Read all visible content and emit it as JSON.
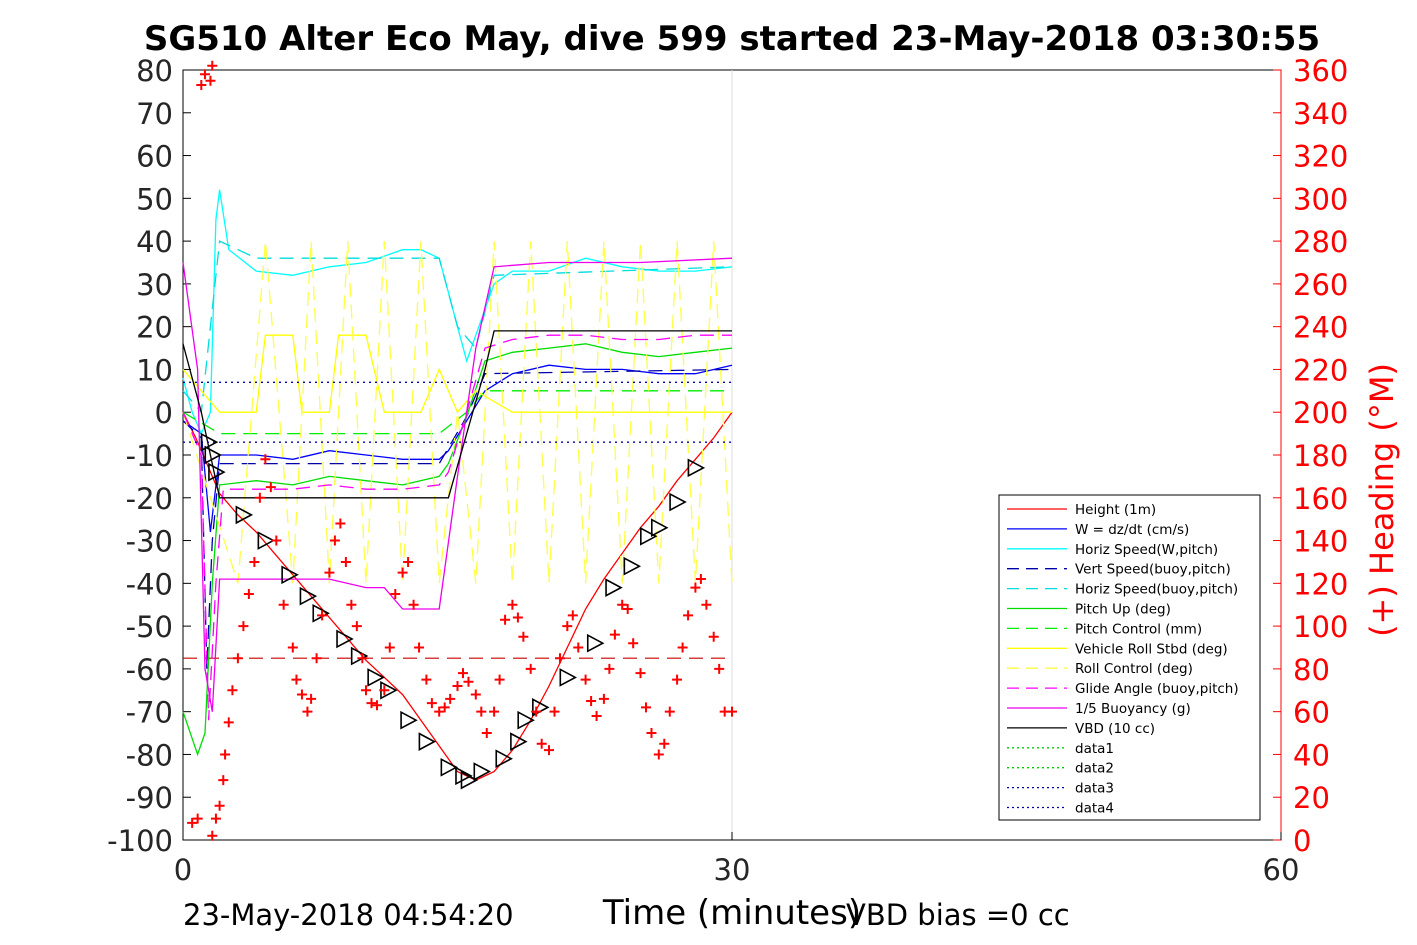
{
  "chart_data": {
    "type": "line",
    "title": "SG510 Alter Eco May, dive 599 started 23-May-2018 03:30:55",
    "xlabel": "Time (minutes)",
    "ylabel_right": "(+) Heading (°M)",
    "xlim": [
      0,
      60
    ],
    "ylim_left": [
      -100,
      80
    ],
    "ylim_right": [
      0,
      360
    ],
    "x_ticks": [
      "0",
      "30",
      "60"
    ],
    "y_ticks_left": [
      "80",
      "70",
      "60",
      "50",
      "40",
      "30",
      "20",
      "10",
      "0",
      "-10",
      "-20",
      "-30",
      "-40",
      "-50",
      "-60",
      "-70",
      "-80",
      "-90",
      "-100"
    ],
    "y_ticks_right": [
      "360",
      "340",
      "320",
      "300",
      "280",
      "260",
      "240",
      "220",
      "200",
      "180",
      "160",
      "140",
      "120",
      "100",
      "80",
      "60",
      "40",
      "20",
      "0"
    ],
    "grid": "x-only at 30",
    "legend_position": "lower-right",
    "colors": {
      "axis_right": "#ff0000",
      "height": "#ff0000",
      "w": "#0000ff",
      "horiz_w": "#00ffff",
      "vert_buoy": "#0000aa",
      "horiz_buoy": "#00dddd",
      "pitch": "#00dd00",
      "pitch_ctrl": "#00ee00",
      "roll": "#ffff00",
      "roll_ctrl": "#ffff44",
      "glide": "#ff00ff",
      "buoyancy": "#ee00ee",
      "vbd": "#000000"
    },
    "series": [
      {
        "name": "Height (1m)",
        "style": "solid",
        "color": "#ff0000",
        "x": [
          0,
          0.7,
          1.4,
          2,
          3,
          4,
          5,
          6,
          7,
          8,
          9,
          10,
          11,
          12,
          13,
          14,
          15,
          16,
          17,
          18,
          19,
          20,
          21,
          22,
          23,
          24,
          25,
          26,
          27,
          28,
          29,
          30
        ],
        "y": [
          0,
          -6,
          -13,
          -19,
          -24,
          -28,
          -33,
          -38,
          -43,
          -48,
          -53,
          -58,
          -62,
          -66,
          -72,
          -78,
          -84,
          -86,
          -84,
          -79,
          -72,
          -64,
          -55,
          -46,
          -39,
          -33,
          -27,
          -22,
          -16,
          -11,
          -6,
          0
        ]
      },
      {
        "name": "W = dz/dt (cm/s)",
        "style": "solid",
        "color": "#0000ff",
        "x": [
          0,
          1,
          1.5,
          2,
          4,
          6,
          8,
          10,
          12,
          14,
          14.5,
          15.5,
          16.5,
          18,
          20,
          22,
          24,
          26,
          28,
          30
        ],
        "y": [
          -2,
          -5,
          -28,
          -10,
          -10,
          -11,
          -9,
          -10,
          -11,
          -11,
          -9,
          -2,
          5,
          9,
          11,
          10,
          10,
          9,
          9,
          11
        ]
      },
      {
        "name": "Horiz Speed(W,pitch)",
        "style": "solid",
        "color": "#00ffff",
        "x": [
          0,
          0.5,
          1,
          1.5,
          1.8,
          2,
          2.5,
          4,
          6,
          8,
          10,
          12,
          13,
          14,
          14.5,
          15,
          15.5,
          16,
          17,
          18,
          20,
          22,
          24,
          26,
          28,
          30
        ],
        "y": [
          8,
          0,
          -5,
          0,
          45,
          52,
          38,
          33,
          32,
          34,
          35,
          38,
          38,
          36,
          28,
          20,
          12,
          18,
          30,
          33,
          33,
          36,
          34,
          33,
          33,
          34
        ]
      },
      {
        "name": "Vert Speed(buoy,pitch)",
        "style": "dash",
        "color": "#0000aa",
        "x": [
          0,
          1,
          1.3,
          1.6,
          2,
          4,
          14,
          15.5,
          16.5,
          30
        ],
        "y": [
          -2,
          -6,
          -60,
          -30,
          -12,
          -12,
          -12,
          -1,
          9,
          10
        ]
      },
      {
        "name": "Horiz Speed(buoy,pitch)",
        "style": "dash",
        "color": "#00dddd",
        "x": [
          0,
          1,
          1.5,
          2,
          4,
          14,
          15,
          16,
          17,
          30
        ],
        "y": [
          5,
          0,
          20,
          40,
          36,
          36,
          20,
          15,
          32,
          34
        ]
      },
      {
        "name": "Pitch Up (deg)",
        "style": "solid",
        "color": "#00dd00",
        "x": [
          0,
          0.8,
          1.2,
          1.6,
          2,
          4,
          6,
          8,
          10,
          12,
          14,
          14.5,
          15.5,
          16.5,
          18,
          20,
          22,
          24,
          26,
          28,
          30
        ],
        "y": [
          -70,
          -80,
          -75,
          -40,
          -17,
          -16,
          -17,
          -15,
          -16,
          -17,
          -15,
          -12,
          -1,
          12,
          14,
          15,
          16,
          14,
          13,
          14,
          15
        ]
      },
      {
        "name": "Pitch Control (mm)",
        "style": "dash",
        "color": "#00ee00",
        "x": [
          0,
          2,
          14,
          15.5,
          16.5,
          30
        ],
        "y": [
          0,
          -5,
          -5,
          0,
          5,
          5
        ]
      },
      {
        "name": "Vehicle Roll Stbd (deg)",
        "style": "solid",
        "color": "#ffff00",
        "x": [
          0,
          2,
          4,
          4.5,
          6,
          6.5,
          8,
          8.5,
          10,
          11,
          13,
          14,
          15,
          16,
          18,
          20,
          22,
          24,
          26,
          28,
          30
        ],
        "y": [
          10,
          0,
          0,
          18,
          18,
          0,
          0,
          18,
          18,
          0,
          0,
          10,
          0,
          5,
          0,
          0,
          0,
          0,
          0,
          0,
          0
        ]
      },
      {
        "name": "Roll Control (deg)",
        "style": "dash",
        "color": "#ffff44",
        "x": [
          0,
          3,
          4.5,
          6,
          7,
          8,
          9,
          10,
          11,
          12,
          13,
          14,
          15,
          16,
          17,
          18,
          19,
          20,
          21,
          22,
          23,
          24,
          25,
          26,
          27,
          28,
          29,
          30
        ],
        "y": [
          0,
          -40,
          40,
          -40,
          40,
          -40,
          40,
          -40,
          40,
          -40,
          40,
          -40,
          0,
          -40,
          40,
          -40,
          40,
          -40,
          40,
          -40,
          40,
          -40,
          40,
          -40,
          40,
          -40,
          40,
          -40
        ]
      },
      {
        "name": "Glide Angle (buoy,pitch)",
        "style": "dash",
        "color": "#ff00ff",
        "x": [
          0,
          1,
          1.4,
          1.8,
          2.2,
          4,
          6,
          8,
          10,
          12,
          14,
          14.5,
          15.5,
          16.5,
          18,
          20,
          22,
          24,
          26,
          28,
          30
        ],
        "y": [
          0,
          -10,
          -72,
          -40,
          -18,
          -18,
          -18,
          -17,
          -18,
          -18,
          -17,
          -14,
          0,
          15,
          17,
          18,
          18,
          17,
          17,
          18,
          18
        ]
      },
      {
        "name": "1/5 Buoyancy (g)",
        "style": "solid",
        "color": "#ee00ee",
        "x": [
          0,
          0.8,
          1.2,
          1.6,
          2,
          6,
          8,
          10,
          11,
          12,
          14,
          15,
          16,
          17,
          20,
          25,
          30
        ],
        "y": [
          35,
          10,
          -60,
          -70,
          -39,
          -39,
          -39,
          -41,
          -41,
          -46,
          -46,
          -15,
          15,
          34,
          35,
          35,
          36
        ]
      },
      {
        "name": "VBD (10 cc)",
        "style": "solid",
        "color": "#000000",
        "x": [
          0,
          1,
          1.5,
          2,
          14,
          14.5,
          15.5,
          16.5,
          17,
          30
        ],
        "y": [
          16,
          0,
          -10,
          -20,
          -20,
          -20,
          -5,
          10,
          19,
          19
        ]
      },
      {
        "name": "data1",
        "style": "dot",
        "color": "#00cc00",
        "x": [],
        "y": []
      },
      {
        "name": "data2",
        "style": "dot",
        "color": "#00cc00",
        "x": [],
        "y": []
      },
      {
        "name": "data3",
        "style": "dot",
        "color": "#0000aa",
        "x": [
          0,
          30
        ],
        "y": [
          7,
          7
        ]
      },
      {
        "name": "data4",
        "style": "dot",
        "color": "#0000aa",
        "x": [
          0,
          30
        ],
        "y": [
          -7,
          -7
        ]
      }
    ],
    "red_dash_line": {
      "y": -57.5,
      "x": [
        0,
        30
      ]
    },
    "triangle_markers": {
      "x": [
        1.4,
        1.6,
        1.8,
        3.3,
        4.5,
        5.8,
        6.8,
        7.5,
        8.8,
        9.6,
        10.5,
        11.2,
        12.3,
        13.3,
        14.5,
        15.3,
        15.6,
        16.3,
        17.5,
        18.3,
        18.7,
        19.5,
        21,
        22.5,
        23.5,
        24.5,
        25.4,
        26,
        27,
        28
      ],
      "y": [
        -7,
        -10,
        -14,
        -24,
        -30,
        -38,
        -43,
        -47,
        -53,
        -57,
        -62,
        -65,
        -72,
        -77,
        -83,
        -85,
        -86,
        -84,
        -81,
        -77,
        -72,
        -69,
        -62,
        -54,
        -41,
        -36,
        -29,
        -27,
        -21,
        -13
      ]
    },
    "heading_markers_deg": {
      "x": [
        0.5,
        0.8,
        1,
        1.2,
        1.5,
        1.6,
        1.6,
        1.8,
        2,
        2.2,
        2.3,
        2.5,
        2.7,
        3,
        3.3,
        3.6,
        3.9,
        4.2,
        4.5,
        4.8,
        5.1,
        5.5,
        6,
        6.2,
        6.5,
        6.8,
        7,
        7.3,
        7.6,
        8,
        8.3,
        8.6,
        8.9,
        9.2,
        9.5,
        9.8,
        10,
        10.3,
        10.6,
        11,
        11.3,
        11.6,
        12,
        12.3,
        12.6,
        12.9,
        13.3,
        13.6,
        14,
        14.3,
        14.6,
        15,
        15.3,
        15.6,
        16,
        16.3,
        16.6,
        17,
        17.3,
        17.6,
        18,
        18.3,
        18.6,
        19,
        19.3,
        19.6,
        20,
        20.3,
        20.6,
        21,
        21.3,
        21.6,
        22,
        22.3,
        22.6,
        23,
        23.3,
        23.6,
        24,
        24.3,
        24.6,
        25,
        25.3,
        25.6,
        26,
        26.3,
        26.6,
        27,
        27.3,
        27.6,
        28,
        28.3,
        28.6,
        29,
        29.3,
        29.6,
        30
      ],
      "y": [
        8,
        10,
        353,
        358,
        355,
        362,
        2,
        10,
        16,
        28,
        40,
        55,
        70,
        85,
        100,
        115,
        130,
        160,
        178,
        165,
        140,
        110,
        90,
        75,
        68,
        60,
        66,
        85,
        105,
        125,
        140,
        148,
        130,
        110,
        100,
        85,
        70,
        64,
        63,
        70,
        90,
        115,
        125,
        130,
        110,
        90,
        75,
        64,
        60,
        62,
        66,
        72,
        78,
        74,
        68,
        60,
        50,
        60,
        75,
        103,
        110,
        104,
        95,
        80,
        60,
        45,
        42,
        60,
        85,
        100,
        105,
        90,
        75,
        65,
        58,
        66,
        80,
        96,
        110,
        108,
        92,
        78,
        62,
        50,
        40,
        45,
        60,
        75,
        90,
        105,
        118,
        122,
        110,
        95,
        80,
        60,
        60
      ]
    }
  },
  "footer": {
    "timestamp": "23-May-2018 04:54:20",
    "vbd_bias": "VBD bias =0 cc"
  }
}
